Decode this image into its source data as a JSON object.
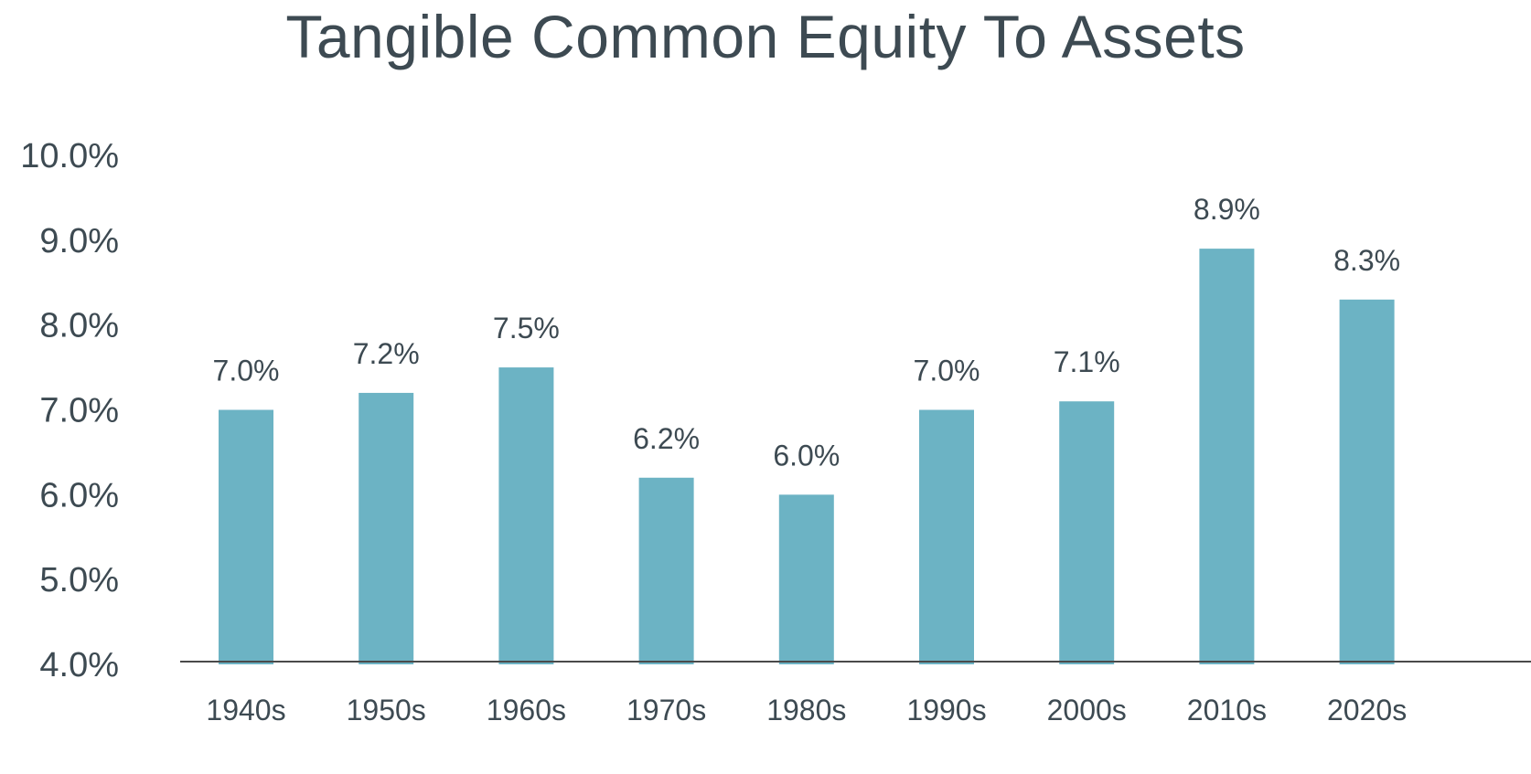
{
  "chart_data": {
    "type": "bar",
    "title": "Tangible Common Equity To Assets",
    "xlabel": "",
    "ylabel": "",
    "categories": [
      "1940s",
      "1950s",
      "1960s",
      "1970s",
      "1980s",
      "1990s",
      "2000s",
      "2010s",
      "2020s"
    ],
    "values": [
      7.0,
      7.2,
      7.5,
      6.2,
      6.0,
      7.0,
      7.1,
      8.9,
      8.3
    ],
    "data_labels": [
      "7.0%",
      "7.2%",
      "7.5%",
      "6.2%",
      "6.0%",
      "7.0%",
      "7.1%",
      "8.9%",
      "8.3%"
    ],
    "ylim": [
      4.0,
      10.0
    ],
    "y_ticks": [
      4.0,
      5.0,
      6.0,
      7.0,
      8.0,
      9.0,
      10.0
    ],
    "y_tick_labels": [
      "4.0%",
      "5.0%",
      "6.0%",
      "7.0%",
      "8.0%",
      "9.0%",
      "10.0%"
    ],
    "grid": false,
    "legend": "none",
    "colors": {
      "bar": "#6cb3c4",
      "text": "#3d4a52",
      "axis": "#4a4a4a"
    }
  }
}
